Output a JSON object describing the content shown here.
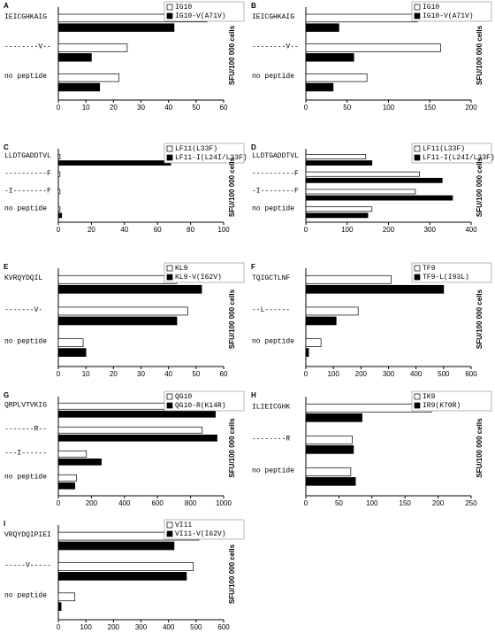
{
  "chart_data": [
    {
      "type": "bar",
      "orientation": "horizontal",
      "panel": "A",
      "categories": [
        "IEICGHKAIG",
        "--------V--",
        "no peptide"
      ],
      "series": [
        {
          "name": "IG10",
          "color": "#ffffff",
          "values": [
            54,
            25,
            22
          ]
        },
        {
          "name": "IG10-V(A71V)",
          "color": "#000000",
          "values": [
            42,
            12,
            15
          ]
        }
      ],
      "xlim": [
        0,
        60
      ],
      "xticks": [
        0,
        10,
        20,
        30,
        40,
        50,
        60
      ],
      "value_axis_label": "SFU/100 000 cells"
    },
    {
      "type": "bar",
      "orientation": "horizontal",
      "panel": "B",
      "categories": [
        "IEICGHKAIG",
        "--------V--",
        "no peptide"
      ],
      "series": [
        {
          "name": "IG10",
          "color": "#ffffff",
          "values": [
            135,
            163,
            74
          ]
        },
        {
          "name": "IG10-V(A71V)",
          "color": "#000000",
          "values": [
            40,
            58,
            33
          ]
        }
      ],
      "xlim": [
        0,
        200
      ],
      "xticks": [
        0,
        50,
        100,
        150,
        200
      ],
      "value_axis_label": "SFU/100 000 cells"
    },
    {
      "type": "bar",
      "orientation": "horizontal",
      "panel": "C",
      "categories": [
        "LLDTGADDTVL",
        "----------F",
        "-I--------F",
        "no peptide"
      ],
      "series": [
        {
          "name": "LF11(L33F)",
          "color": "#ffffff",
          "values": [
            1,
            1,
            1,
            1
          ]
        },
        {
          "name": "LF11-I(L24I/L33F)",
          "color": "#000000",
          "values": [
            68,
            0,
            0,
            2
          ]
        }
      ],
      "xlim": [
        0,
        100
      ],
      "xticks": [
        0,
        20,
        40,
        60,
        80,
        100
      ],
      "value_axis_label": "SFU/100 000 cells"
    },
    {
      "type": "bar",
      "orientation": "horizontal",
      "panel": "D",
      "categories": [
        "LLDTGADDTVL",
        "----------F",
        "-I--------F",
        "no peptide"
      ],
      "series": [
        {
          "name": "LF11(L33F)",
          "color": "#ffffff",
          "values": [
            145,
            275,
            265,
            160
          ]
        },
        {
          "name": "LF11-I(L24I/L33F)",
          "color": "#000000",
          "values": [
            160,
            330,
            355,
            150
          ]
        }
      ],
      "xlim": [
        0,
        400
      ],
      "xticks": [
        0,
        100,
        200,
        300,
        400
      ],
      "value_axis_label": "SFU/100 000 cells"
    },
    {
      "type": "bar",
      "orientation": "horizontal",
      "panel": "E",
      "categories": [
        "KVRQYDQIL",
        "-------V-",
        "no peptide"
      ],
      "series": [
        {
          "name": "KL9",
          "color": "#ffffff",
          "values": [
            43,
            47,
            9
          ]
        },
        {
          "name": "KL9-V(I62V)",
          "color": "#000000",
          "values": [
            52,
            43,
            10
          ]
        }
      ],
      "xlim": [
        0,
        60
      ],
      "xticks": [
        0,
        10,
        20,
        30,
        40,
        50,
        60
      ],
      "value_axis_label": "SFU/100 000 cells"
    },
    {
      "type": "bar",
      "orientation": "horizontal",
      "panel": "F",
      "categories": [
        "TQIGCTLNF",
        "--L------",
        "no peptide"
      ],
      "series": [
        {
          "name": "TF9",
          "color": "#ffffff",
          "values": [
            310,
            190,
            55
          ]
        },
        {
          "name": "TF9-L(I93L)",
          "color": "#000000",
          "values": [
            500,
            110,
            10
          ]
        }
      ],
      "xlim": [
        0,
        600
      ],
      "xticks": [
        0,
        100,
        200,
        300,
        400,
        500,
        600
      ],
      "value_axis_label": "SFU/100 000 cells"
    },
    {
      "type": "bar",
      "orientation": "horizontal",
      "panel": "G",
      "categories": [
        "QRPLVTVKIG",
        "-------R--",
        "---I------",
        "no peptide"
      ],
      "series": [
        {
          "name": "QG10",
          "color": "#ffffff",
          "values": [
            900,
            870,
            170,
            110
          ]
        },
        {
          "name": "QG10-R(K14R)",
          "color": "#000000",
          "values": [
            950,
            960,
            260,
            100
          ]
        }
      ],
      "xlim": [
        0,
        1000
      ],
      "xticks": [
        0,
        200,
        400,
        600,
        800,
        1000
      ],
      "value_axis_label": "SFU/100 000 cells"
    },
    {
      "type": "bar",
      "orientation": "horizontal",
      "panel": "H",
      "categories": [
        "ILIEICGHK",
        "--------R",
        "no peptide"
      ],
      "series": [
        {
          "name": "IK9",
          "color": "#ffffff",
          "values": [
            190,
            70,
            68
          ]
        },
        {
          "name": "IR9(K70R)",
          "color": "#000000",
          "values": [
            85,
            72,
            75
          ]
        }
      ],
      "xlim": [
        0,
        250
      ],
      "xticks": [
        0,
        50,
        100,
        150,
        200,
        250
      ],
      "value_axis_label": "SFU/100 000 cells"
    },
    {
      "type": "bar",
      "orientation": "horizontal",
      "panel": "I",
      "categories": [
        "VRQYDQIPIEI",
        "-----V-----",
        "no peptide"
      ],
      "series": [
        {
          "name": "VI11",
          "color": "#ffffff",
          "values": [
            510,
            490,
            60
          ]
        },
        {
          "name": "VI11-V(I62V)",
          "color": "#000000",
          "values": [
            420,
            465,
            10
          ]
        }
      ],
      "xlim": [
        0,
        600
      ],
      "xticks": [
        0,
        100,
        200,
        300,
        400,
        500,
        600
      ],
      "value_axis_label": "SFU/100 000 cells"
    }
  ]
}
